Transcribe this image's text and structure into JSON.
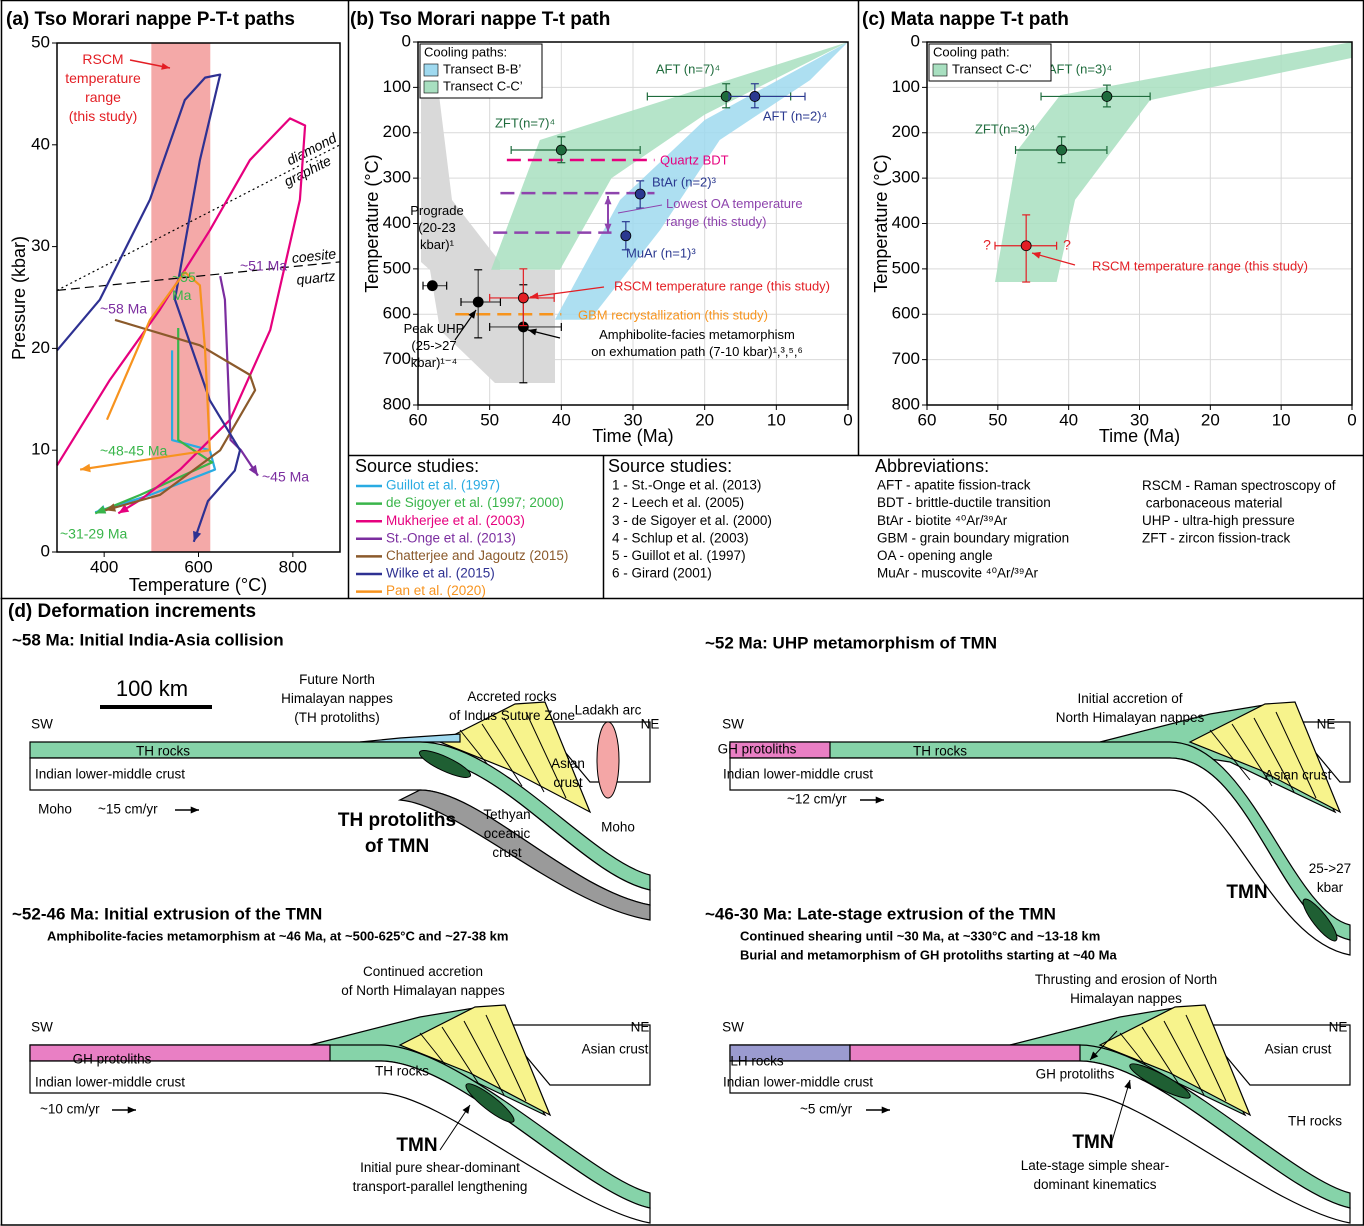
{
  "chart_data": [
    {
      "type": "line",
      "title": "(a) Tso Morari nappe P-T-t paths",
      "x_label": "Temperature (°C)",
      "y_label": "Pressure (kbar)",
      "xlim": [
        300,
        900
      ],
      "xticks": [
        400,
        600,
        800
      ],
      "ylim": [
        0,
        50
      ],
      "yticks": [
        0,
        10,
        20,
        30,
        40,
        50
      ],
      "grid": false,
      "legend_title": "Source studies:",
      "band": {
        "label": "RSCM\ntemperature\nrange\n(this study)",
        "x": [
          500,
          625
        ],
        "color": "#f4a9a8"
      },
      "reaction_lines": [
        {
          "labels": [
            "diamond",
            "graphite"
          ],
          "x": [
            300,
            900
          ],
          "y": [
            25.7,
            40
          ],
          "style": "dotted"
        },
        {
          "labels": [
            "coesite",
            "quartz"
          ],
          "x": [
            300,
            900
          ],
          "y": [
            25.7,
            28.5
          ],
          "style": "dashed"
        }
      ],
      "series": [
        {
          "name": "Guillot et al. (1997)",
          "color": "#29abe2",
          "x": [
            544,
            544,
            624,
            635,
            497,
            381
          ],
          "y": [
            19.8,
            11,
            10,
            8.1,
            5.6,
            3.9
          ]
        },
        {
          "name": "de Sigoyer et al. (1997; 2000)",
          "color": "#39b54a",
          "x": [
            557,
            557,
            629,
            476,
            381
          ],
          "y": [
            22,
            11,
            8.8,
            5.6,
            3.8
          ]
        },
        {
          "name": "Mukherjee et al. (2003)",
          "color": "#e6007e",
          "x": [
            300,
            412,
            518,
            624,
            709,
            794,
            826,
            815,
            752,
            667,
            561,
            476,
            430
          ],
          "y": [
            8.5,
            16.9,
            23.8,
            31.6,
            38.5,
            42.6,
            41.9,
            34.6,
            21.8,
            13,
            8.1,
            5.1,
            3.8
          ]
        },
        {
          "name": "St.-Onge et al. (2013)",
          "color": "#7b2d9f",
          "x": [
            646,
            656,
            668,
            690,
            726
          ],
          "y": [
            27.1,
            24.8,
            11,
            10,
            7.5
          ]
        },
        {
          "name": "Chatterjee and Jagoutz (2015)",
          "color": "#8b5a2b",
          "x": [
            423,
            603,
            709,
            720,
            646,
            518,
            402
          ],
          "y": [
            22.8,
            20.3,
            17.4,
            15.9,
            10,
            5.6,
            4.1
          ]
        },
        {
          "name": "Wilke et al. (2015)",
          "color": "#2e3192",
          "x": [
            300,
            391,
            497,
            571,
            614,
            646,
            603,
            550,
            624,
            688,
            677,
            620,
            590
          ],
          "y": [
            19.8,
            24.8,
            34.6,
            44.4,
            46.6,
            46.9,
            38.5,
            24.8,
            14.9,
            10,
            8,
            5,
            1
          ]
        },
        {
          "name": "Pan et al. (2020)",
          "color": "#f7931e",
          "x": [
            406,
            497,
            571,
            603,
            614,
            624,
            349
          ],
          "y": [
            13,
            22.8,
            27.5,
            26.2,
            19.8,
            10,
            8.1
          ]
        }
      ],
      "annotations": [
        {
          "text": "~51 Ma",
          "color": "#7b2d9f"
        },
        {
          "text": "~58 Ma",
          "color": "#7b2d9f"
        },
        {
          "text": "~55\nMa",
          "color": "#39b54a"
        },
        {
          "text": "~48-45 Ma",
          "color": "#39b54a"
        },
        {
          "text": "~45 Ma",
          "color": "#7b2d9f"
        },
        {
          "text": "~31-29 Ma",
          "color": "#39b54a"
        }
      ]
    },
    {
      "type": "scatter",
      "title": "(b) Tso Morari nappe T-t path",
      "x_label": "Time (Ma)",
      "y_label": "Temperature (°C)",
      "xlim": [
        60,
        0
      ],
      "xticks": [
        60,
        50,
        40,
        30,
        20,
        10,
        0
      ],
      "ylim": [
        800,
        0
      ],
      "yticks": [
        0,
        100,
        200,
        300,
        400,
        500,
        600,
        700,
        800
      ],
      "grid": true,
      "legend_title": "Cooling paths:",
      "areas": [
        {
          "name": "Transect B-B’",
          "color": "#9fd9ef",
          "x": [
            40.9,
            31.8,
            20,
            0,
            5.3,
            17.9,
            26.2,
            36
          ],
          "y": [
            612,
            348,
            172,
            0,
            84,
            216,
            414,
            612
          ]
        },
        {
          "name": "Transect C-C’",
          "color": "#a8dfc0",
          "x": [
            49.8,
            43,
            0,
            20,
            33,
            40.2
          ],
          "y": [
            502,
            216,
            0,
            160,
            300,
            502
          ]
        }
      ],
      "reference_lines": [
        {
          "label": "Quartz BDT",
          "color": "#e6007e",
          "y": 260,
          "x": [
            47.6,
            27
          ]
        },
        {
          "color": "#8e44ad",
          "y": 333,
          "x": [
            48.5,
            27
          ]
        },
        {
          "label": "Lowest OA temperature\nrange (this study)",
          "color": "#8e44ad",
          "y": 420,
          "x": [
            49.5,
            33
          ]
        },
        {
          "label": "GBM recrystallization (this study)",
          "color": "#f7941d",
          "y": 600,
          "x": [
            54.8,
            40
          ]
        }
      ],
      "points": [
        {
          "label": "ZFT(n=7)⁴",
          "color": "#1e6b3c",
          "x": 40,
          "y": 238,
          "x_range": [
            47,
            29
          ],
          "y_range": [
            209,
            266
          ]
        },
        {
          "label": "AFT (n=7)⁴",
          "color": "#1e6b3c",
          "x": 17,
          "y": 120,
          "x_range": [
            28,
            8
          ],
          "y_range": [
            92,
            145
          ]
        },
        {
          "label": "AFT (n=2)⁴",
          "color": "#2b3990",
          "x": 13,
          "y": 120,
          "x_range": [
            16.6,
            6
          ],
          "y_range": [
            92,
            145
          ]
        },
        {
          "label": "BtAr (n=2)³",
          "color": "#2b3990",
          "x": 29,
          "y": 335,
          "y_range": [
            306,
            366
          ]
        },
        {
          "label": "MuAr (n=1)³",
          "color": "#2b3990",
          "x": 31,
          "y": 427,
          "y_range": [
            396,
            458
          ]
        },
        {
          "label": "Prograde\n(20-23\nkbar)¹",
          "color": "#000000",
          "x": 58,
          "y": 537,
          "x_range": [
            59.3,
            56
          ]
        },
        {
          "label": "Peak UHP\n(25->27\nkbar)¹⁻⁴",
          "color": "#000000",
          "x": 51.6,
          "y": 573,
          "x_range": [
            54,
            48.5
          ],
          "y_range": [
            502,
            652
          ]
        },
        {
          "label": "Amphibolite-facies metamorphism\non exhumation path (7-10 kbar)¹,³,⁵,⁶",
          "color": "#000000",
          "x": 45.3,
          "y": 628,
          "x_range": [
            50,
            40
          ],
          "y_range": [
            535,
            751
          ]
        },
        {
          "label": "RSCM temperature range (this study)",
          "color": "#e31e24",
          "x": 45.3,
          "y": 564,
          "x_range": [
            50,
            41
          ],
          "y_range": [
            500,
            625
          ]
        }
      ]
    },
    {
      "type": "scatter",
      "title": "(c) Mata nappe T-t path",
      "x_label": "Time (Ma)",
      "y_label": "Temperature (°C)",
      "xlim": [
        60,
        0
      ],
      "xticks": [
        60,
        50,
        40,
        30,
        20,
        10,
        0
      ],
      "ylim": [
        800,
        0
      ],
      "yticks": [
        0,
        100,
        200,
        300,
        400,
        500,
        600,
        700,
        800
      ],
      "grid": true,
      "legend_title": "Cooling path:",
      "areas": [
        {
          "name": "Transect C-C’",
          "color": "#a8dfc0",
          "x": [
            50.4,
            47.2,
            41.2,
            0,
            0,
            28.5,
            39.1,
            41.7
          ],
          "y": [
            529,
            238,
            117,
            0,
            35,
            128,
            348,
            529
          ]
        }
      ],
      "uncertainty_labels": [
        "?",
        "?"
      ],
      "points": [
        {
          "label": "AFT (n=3)⁴",
          "color": "#1e6b3c",
          "x": 34.6,
          "y": 120,
          "x_range": [
            43.9,
            28.5
          ],
          "y_range": [
            95,
            143
          ]
        },
        {
          "label": "ZFT(n=3)⁴",
          "color": "#1e6b3c",
          "x": 41,
          "y": 238,
          "x_range": [
            47.5,
            34.6
          ],
          "y_range": [
            209,
            266
          ]
        },
        {
          "label": "RSCM temperature range (this study)",
          "color": "#e31e24",
          "x": 46,
          "y": 449,
          "x_range": [
            50.4,
            41.7
          ],
          "y_range": [
            381,
            529
          ]
        }
      ]
    }
  ],
  "source_studies": {
    "title": "Source studies:",
    "items": [
      "1 - St.-Onge et al. (2013)",
      "2 - Leech et al. (2005)",
      "3 - de Sigoyer et al. (2000)",
      "4 - Schlup et al. (2003)",
      "5 - Guillot et al. (1997)",
      "6 - Girard (2001)"
    ]
  },
  "abbreviations": {
    "title": "Abbreviations:",
    "items": [
      "AFT - apatite fission-track",
      "BDT - brittle-ductile transition",
      "BtAr - biotite ⁴⁰Ar/³⁹Ar",
      "GBM - grain boundary migration",
      "OA - opening angle",
      "MuAr - muscovite ⁴⁰Ar/³⁹Ar",
      "RSCM - Raman spectroscopy of\n     carbonaceous material",
      "UHP - ultra-high pressure",
      "ZFT - zircon fission-track"
    ]
  },
  "deformation": {
    "title": "(d) Deformation increments",
    "scale": "100 km",
    "stages": [
      {
        "title": "~58 Ma: Initial India-Asia collision",
        "labels": [
          "SW",
          "NE",
          "TH rocks",
          "Indian lower-middle crust",
          "Moho",
          "~15 cm/yr",
          "Future North\nHimalayan nappes\n(TH protoliths)",
          "Accreted rocks\nof Indus Suture Zone",
          "Ladakh arc",
          "Asian\ncrust",
          "TH protoliths\nof TMN",
          "Tethyan\noceanic\ncrust",
          "Moho"
        ]
      },
      {
        "title": "~52 Ma: UHP metamorphism of TMN",
        "labels": [
          "SW",
          "NE",
          "GH protoliths",
          "TH rocks",
          "Indian lower-middle crust",
          "~12 cm/yr",
          "Initial accretion of\nNorth Himalayan nappes",
          "Asian crust",
          "TMN",
          "25->27\nkbar"
        ]
      },
      {
        "title": "~52-46 Ma: Initial extrusion of the TMN",
        "subtitle": [
          "Amphibolite-facies metamorphism at ~46 Ma, at ~500-625°C and ~27-38 km"
        ],
        "labels": [
          "SW",
          "NE",
          "GH protoliths",
          "TH rocks",
          "Indian lower-middle crust",
          "~10 cm/yr",
          "Continued accretion\nof North Himalayan nappes",
          "Asian crust",
          "TMN",
          "Initial pure shear-dominant\ntransport-parallel lengthening"
        ]
      },
      {
        "title": "~46-30 Ma: Late-stage extrusion of the TMN",
        "subtitle": [
          "Continued shearing until ~30 Ma, at ~330°C and ~13-18 km",
          "Burial and metamorphism of GH protoliths starting at ~40 Ma"
        ],
        "labels": [
          "SW",
          "NE",
          "LH rocks",
          "GH protoliths",
          "Indian lower-middle crust",
          "~5 cm/yr",
          "Thrusting and erosion of North\nHimalayan nappes",
          "Asian crust",
          "TMN",
          "Late-stage simple shear-\ndominant kinematics",
          "TH rocks"
        ]
      }
    ]
  }
}
